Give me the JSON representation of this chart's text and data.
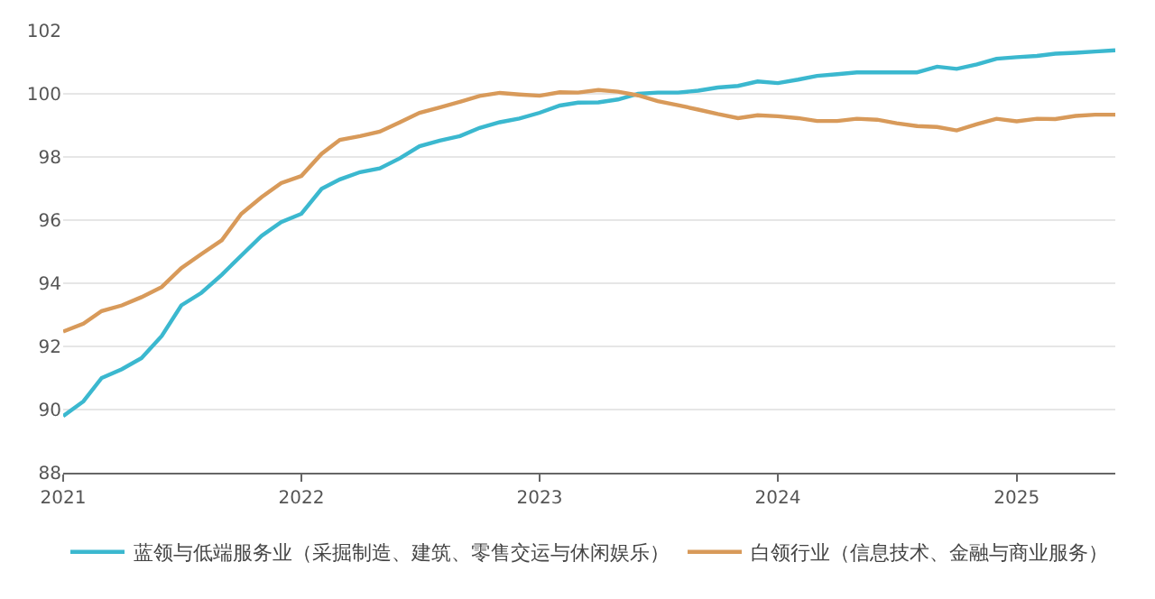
{
  "chart_data": {
    "type": "line",
    "x": [
      "2021-01",
      "2021-02",
      "2021-03",
      "2021-04",
      "2021-05",
      "2021-06",
      "2021-07",
      "2021-08",
      "2021-09",
      "2021-10",
      "2021-11",
      "2021-12",
      "2022-01",
      "2022-02",
      "2022-03",
      "2022-04",
      "2022-05",
      "2022-06",
      "2022-07",
      "2022-08",
      "2022-09",
      "2022-10",
      "2022-11",
      "2022-12",
      "2023-01",
      "2023-02",
      "2023-03",
      "2023-04",
      "2023-05",
      "2023-06",
      "2023-07",
      "2023-08",
      "2023-09",
      "2023-10",
      "2023-11",
      "2023-12",
      "2024-01",
      "2024-02",
      "2024-03",
      "2024-04",
      "2024-05",
      "2024-06",
      "2024-07",
      "2024-08",
      "2024-09",
      "2024-10",
      "2024-11",
      "2024-12",
      "2025-01",
      "2025-02",
      "2025-03",
      "2025-04",
      "2025-05",
      "2025-06"
    ],
    "series": [
      {
        "name": "蓝领与低端服务业（采掘制造、建筑、零售交运与休闲娱乐）",
        "color": "#3bb8cf",
        "values": [
          89.79,
          90.26,
          91.0,
          91.28,
          91.63,
          92.33,
          93.3,
          93.7,
          94.27,
          94.88,
          95.5,
          95.94,
          96.2,
          96.99,
          97.29,
          97.52,
          97.64,
          97.96,
          98.34,
          98.52,
          98.66,
          98.92,
          99.1,
          99.22,
          99.4,
          99.63,
          99.72,
          99.73,
          99.82,
          100.0,
          100.04,
          100.04,
          100.1,
          100.2,
          100.25,
          100.39,
          100.34,
          100.45,
          100.57,
          100.62,
          100.68,
          100.68,
          100.68,
          100.68,
          100.86,
          100.79,
          100.93,
          101.11,
          101.16,
          101.2,
          101.27,
          101.3,
          101.34,
          101.38
        ]
      },
      {
        "name": "白领行业（信息技术、金融与商业服务）",
        "color": "#d89a5a",
        "values": [
          92.47,
          92.72,
          93.12,
          93.3,
          93.56,
          93.88,
          94.48,
          94.93,
          95.36,
          96.2,
          96.73,
          97.17,
          97.4,
          98.1,
          98.54,
          98.66,
          98.8,
          99.1,
          99.4,
          99.57,
          99.75,
          99.93,
          100.03,
          99.98,
          99.94,
          100.05,
          100.04,
          100.12,
          100.07,
          99.95,
          99.77,
          99.64,
          99.5,
          99.36,
          99.23,
          99.32,
          99.29,
          99.23,
          99.14,
          99.14,
          99.21,
          99.18,
          99.07,
          98.98,
          98.95,
          98.84,
          99.04,
          99.21,
          99.13,
          99.21,
          99.2,
          99.3,
          99.34,
          99.34
        ]
      }
    ],
    "xlim": [
      "2021-01",
      "2025-06"
    ],
    "xticks": [
      {
        "value": "2021-01",
        "label": "2021"
      },
      {
        "value": "2022-01",
        "label": "2022"
      },
      {
        "value": "2023-01",
        "label": "2023"
      },
      {
        "value": "2024-01",
        "label": "2024"
      },
      {
        "value": "2025-01",
        "label": "2025"
      }
    ],
    "ylim": [
      88,
      102
    ],
    "yticks": [
      88,
      90,
      92,
      94,
      96,
      98,
      100,
      102
    ],
    "grid": "y",
    "legend": "bottom",
    "marker": "none",
    "line_style": "solid"
  }
}
